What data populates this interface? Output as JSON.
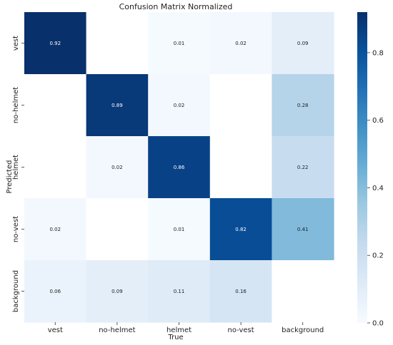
{
  "chart_data": {
    "type": "heatmap",
    "title": "Confusion Matrix Normalized",
    "xlabel": "True",
    "ylabel": "Predicted",
    "x_categories": [
      "vest",
      "no-helmet",
      "helmet",
      "no-vest",
      "background"
    ],
    "y_categories": [
      "vest",
      "no-helmet",
      "helmet",
      "no-vest",
      "background"
    ],
    "values": [
      [
        0.92,
        null,
        0.01,
        0.02,
        0.09
      ],
      [
        null,
        0.89,
        0.02,
        null,
        0.28
      ],
      [
        null,
        0.02,
        0.86,
        null,
        0.22
      ],
      [
        0.02,
        null,
        0.01,
        0.82,
        0.41
      ],
      [
        0.06,
        0.09,
        0.11,
        0.16,
        null
      ]
    ],
    "value_labels": [
      [
        "0.92",
        "",
        "0.01",
        "0.02",
        "0.09"
      ],
      [
        "",
        "0.89",
        "0.02",
        "",
        "0.28"
      ],
      [
        "",
        "0.02",
        "0.86",
        "",
        "0.22"
      ],
      [
        "0.02",
        "",
        "0.01",
        "0.82",
        "0.41"
      ],
      [
        "0.06",
        "0.09",
        "0.11",
        "0.16",
        ""
      ]
    ],
    "vmin": 0,
    "vmax": 0.92,
    "colormap": "Blues",
    "colorbar_ticks": [
      0.0,
      0.2,
      0.4,
      0.6,
      0.8
    ],
    "colorbar_tick_labels": [
      "0.0",
      "0.2",
      "0.4",
      "0.6",
      "0.8"
    ],
    "grid": false
  }
}
